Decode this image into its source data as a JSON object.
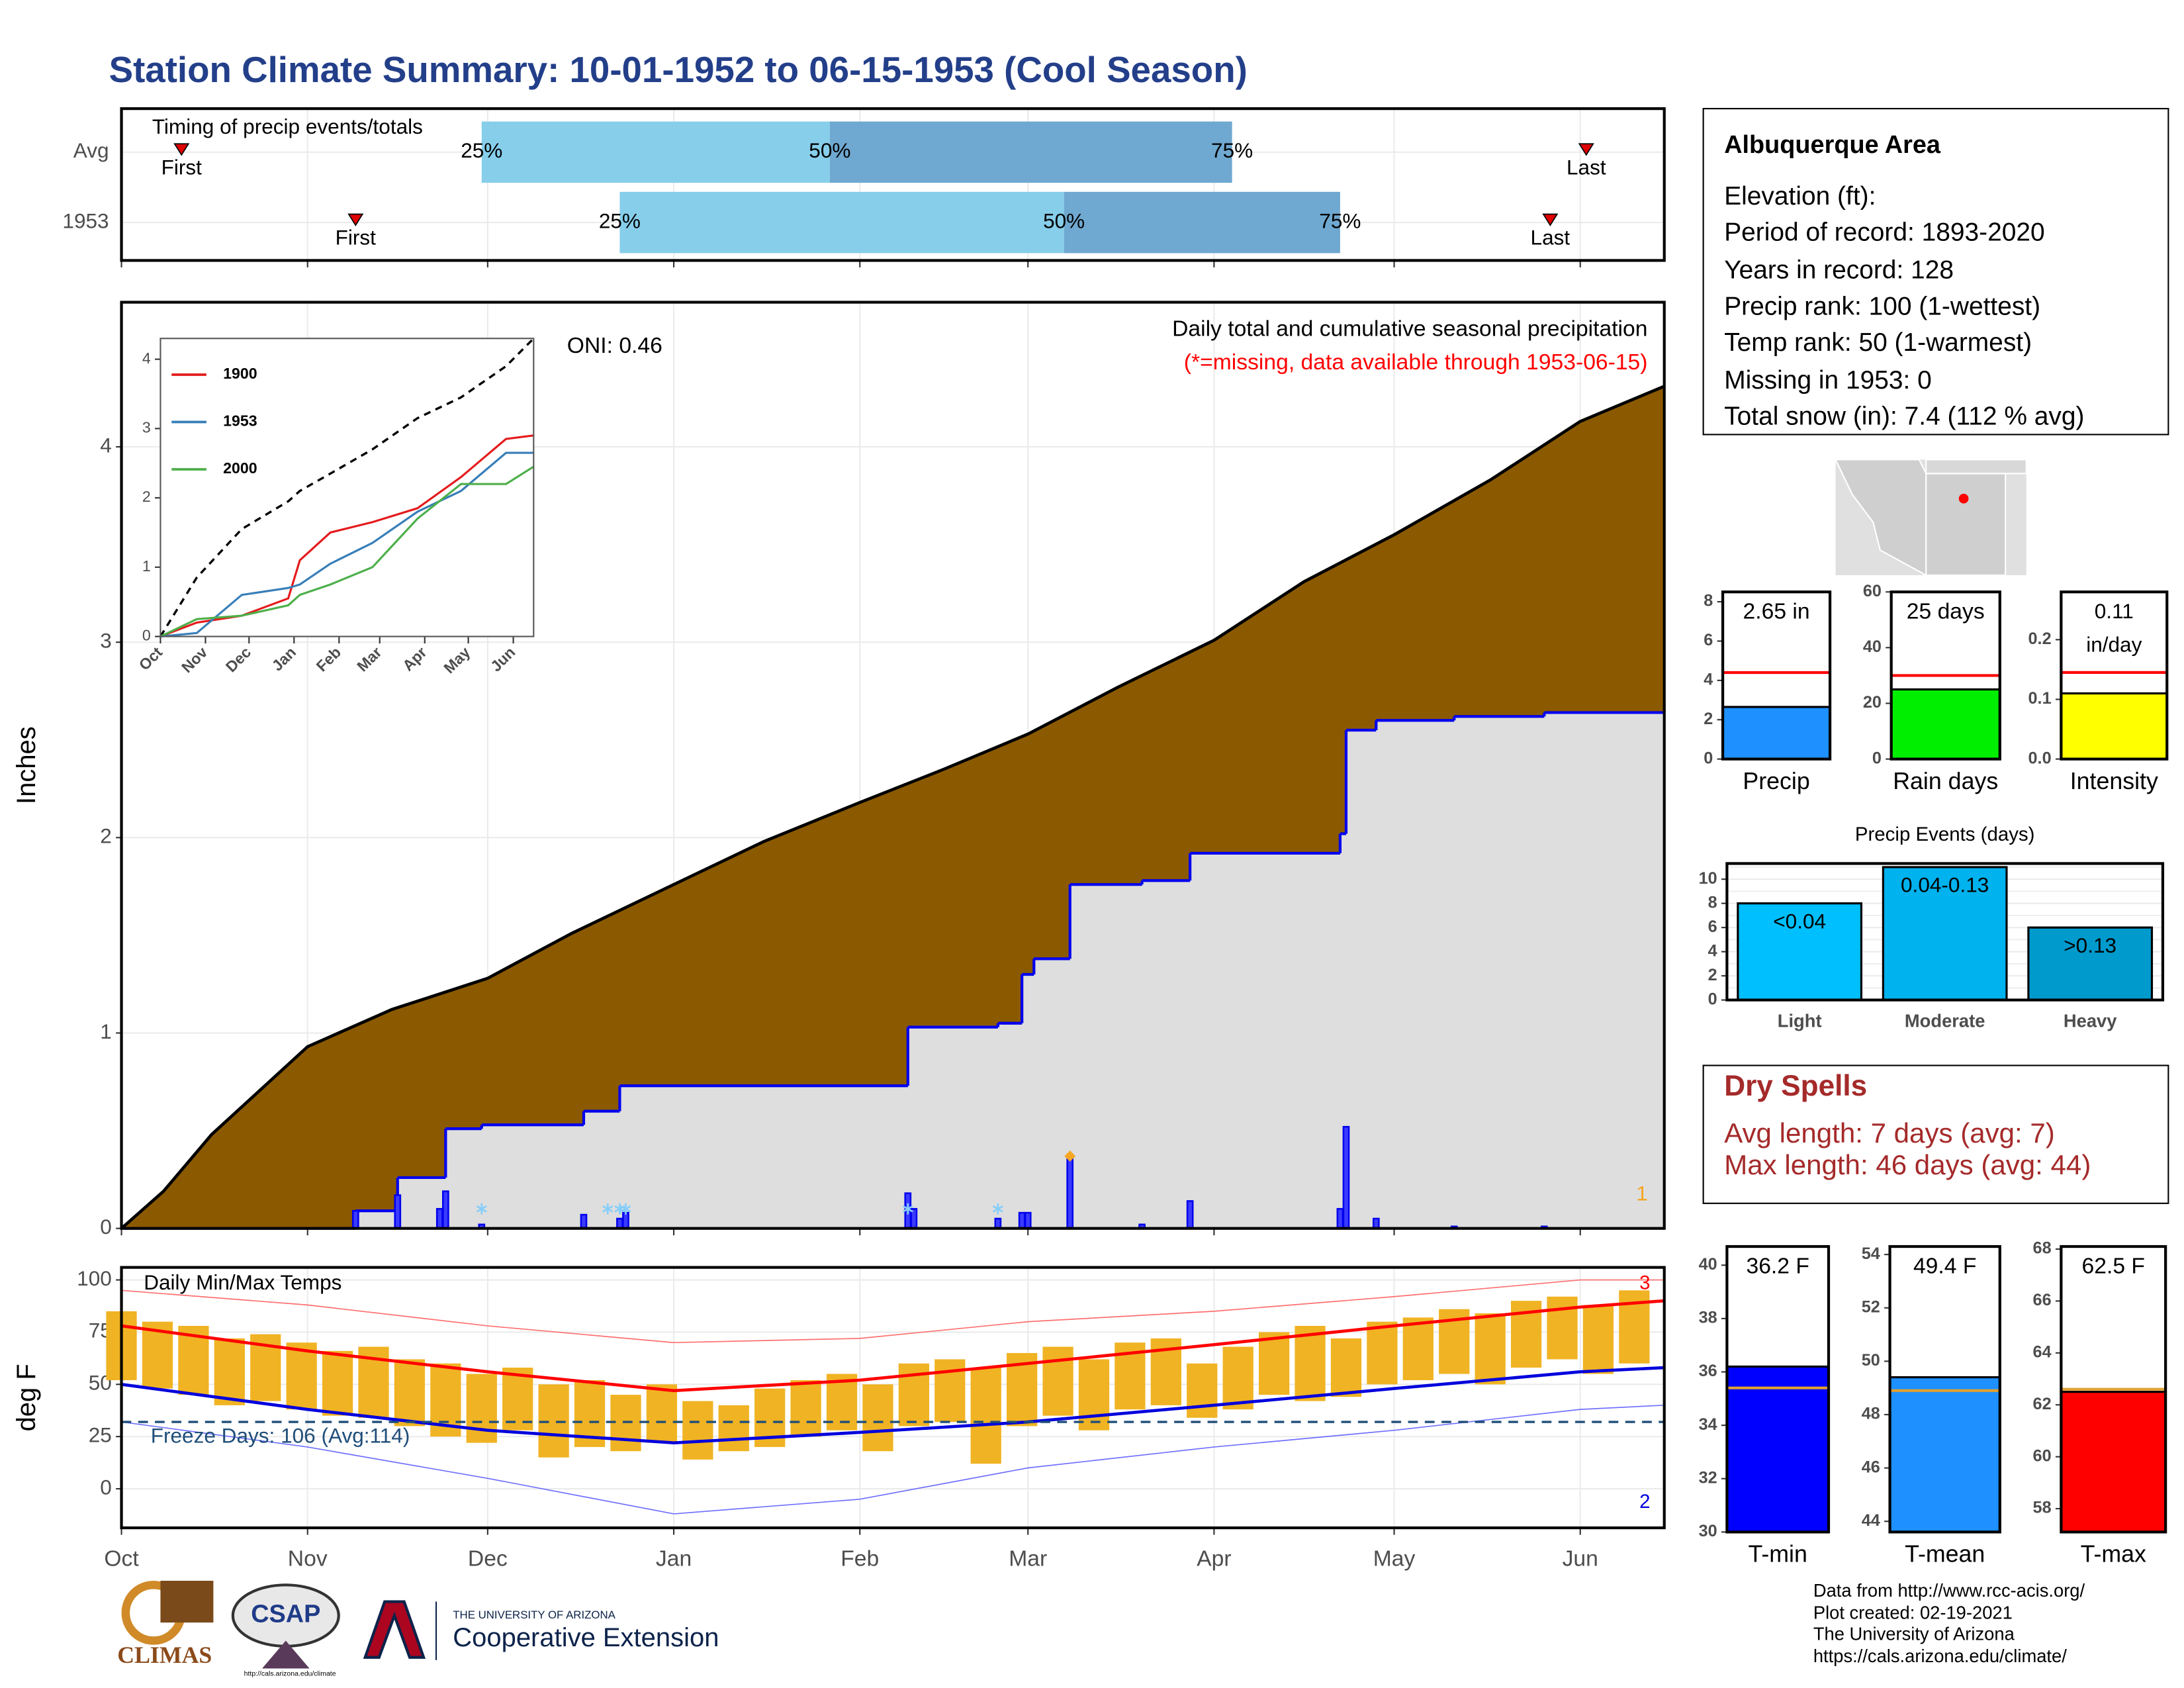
{
  "title": "Station Climate Summary: 10-01-1952 to 06-15-1953 (Cool Season)",
  "info": {
    "title": "Albuquerque Area",
    "lines": [
      "Elevation (ft):",
      "Period of record: 1893-2020",
      "Years in record: 128",
      "Precip rank: 100 (1-wettest)",
      "Temp rank: 50 (1-warmest)",
      "Missing in 1953: 0",
      "Total snow (in): 7.4 (112 % avg)"
    ]
  },
  "dry_spells": {
    "title": "Dry Spells",
    "lines": [
      "Avg length: 7 days (avg: 7)",
      "Max length: 46 days (avg: 44)"
    ]
  },
  "footer": {
    "credits": [
      "Data from http://www.rcc-acis.org/",
      "Plot created: 02-19-2021",
      "The University of Arizona",
      "https://cals.arizona.edu/climate/"
    ],
    "logos": {
      "climas": "CLIMAS",
      "csap": "CSAP",
      "csap_url": "http://cals.arizona.edu/climate",
      "university": "THE UNIVERSITY OF ARIZONA",
      "extension": "Cooperative Extension"
    }
  },
  "chart_data": [
    {
      "type": "timeline",
      "title": "Timing of precip events/totals",
      "xlim": [
        0,
        257
      ],
      "xticks": [
        0,
        31,
        61,
        92,
        123,
        151,
        182,
        212,
        243
      ],
      "first_label": "First",
      "last_label": "Last",
      "quartile_labels": [
        "25%",
        "50%",
        "75%"
      ],
      "colors": [
        "#87ceeb",
        "#6fa8d0"
      ],
      "marker_color": "#e00000",
      "rows": [
        {
          "name": "Avg",
          "first": 10,
          "q25": 60,
          "q50": 118,
          "q75": 185,
          "last": 244
        },
        {
          "name": "1953",
          "first": 39,
          "q25": 83,
          "q50": 157,
          "q75": 203,
          "last": 238
        }
      ]
    },
    {
      "type": "area",
      "ylabel": "Inches",
      "oni": "ONI: 0.46",
      "subtitle": "Daily total and cumulative seasonal precipitation",
      "note": "(*=missing, data available through 1953-06-15)",
      "corner_label": "1",
      "xlim": [
        0,
        257
      ],
      "xticks": [
        0,
        31,
        61,
        92,
        123,
        151,
        182,
        212,
        243
      ],
      "ylim": [
        0,
        4.74
      ],
      "yticks": [
        0,
        1,
        2,
        3,
        4
      ],
      "grid": true,
      "average": {
        "color": "#8b5a00",
        "x": [
          0,
          7,
          15,
          31,
          45,
          61,
          75,
          92,
          107,
          123,
          137,
          151,
          166,
          182,
          197,
          212,
          228,
          243,
          257
        ],
        "values": [
          0,
          0.19,
          0.48,
          0.93,
          1.12,
          1.28,
          1.51,
          1.76,
          1.98,
          2.18,
          2.35,
          2.53,
          2.77,
          3.01,
          3.31,
          3.55,
          3.83,
          4.13,
          4.31
        ]
      },
      "season": {
        "color": "#0000ee",
        "fill": "#dedede",
        "x": [
          0,
          39,
          46,
          54,
          60,
          77,
          83,
          131,
          146,
          150,
          152,
          158,
          170,
          178,
          203,
          204,
          209,
          222,
          237,
          257
        ],
        "values": [
          0,
          0.09,
          0.26,
          0.51,
          0.53,
          0.6,
          0.73,
          1.03,
          1.05,
          1.3,
          1.38,
          1.76,
          1.78,
          1.92,
          2.02,
          2.55,
          2.6,
          2.62,
          2.64,
          2.65
        ]
      },
      "daily": {
        "color": "#0000ee",
        "x": [
          39,
          46,
          53,
          54,
          60,
          77,
          83,
          84,
          131,
          132,
          146,
          150,
          151,
          158,
          170,
          178,
          203,
          204,
          209,
          222,
          237
        ],
        "values": [
          0.09,
          0.17,
          0.1,
          0.19,
          0.02,
          0.07,
          0.05,
          0.08,
          0.18,
          0.1,
          0.05,
          0.08,
          0.08,
          0.36,
          0.02,
          0.14,
          0.1,
          0.52,
          0.05,
          0.01,
          0.01
        ]
      },
      "snow_x": [
        60,
        81,
        83,
        84,
        131,
        146
      ],
      "snow_color": "#87cefa",
      "peak": {
        "x": 158,
        "value": 0.37,
        "color": "#f5a623"
      }
    },
    {
      "type": "line",
      "xlim": [
        0,
        257
      ],
      "ylim": [
        0,
        4.3
      ],
      "yticks": [
        0,
        1,
        2,
        3,
        4
      ],
      "xticks": [
        {
          "value": 0,
          "label": "Oct"
        },
        {
          "value": 31,
          "label": "Nov"
        },
        {
          "value": 61,
          "label": "Dec"
        },
        {
          "value": 92,
          "label": "Jan"
        },
        {
          "value": 123,
          "label": "Feb"
        },
        {
          "value": 151,
          "label": "Mar"
        },
        {
          "value": 182,
          "label": "Apr"
        },
        {
          "value": 212,
          "label": "May"
        },
        {
          "value": 243,
          "label": "Jun"
        }
      ],
      "x": [
        0,
        25,
        56,
        88,
        96,
        117,
        146,
        177,
        207,
        238,
        257
      ],
      "reference": {
        "color": "#000000",
        "values": [
          0,
          0.85,
          1.55,
          1.95,
          2.1,
          2.35,
          2.7,
          3.15,
          3.45,
          3.9,
          4.3
        ]
      },
      "series": [
        {
          "name": "1900",
          "color": "#e41a1c",
          "values": [
            0,
            0.2,
            0.3,
            0.55,
            1.1,
            1.5,
            1.65,
            1.85,
            2.3,
            2.85,
            2.9
          ]
        },
        {
          "name": "1953",
          "color": "#377eb8",
          "values": [
            0,
            0.05,
            0.6,
            0.7,
            0.75,
            1.05,
            1.35,
            1.8,
            2.1,
            2.65,
            2.65
          ]
        },
        {
          "name": "2000",
          "color": "#4daf4a",
          "values": [
            0,
            0.25,
            0.3,
            0.45,
            0.6,
            0.75,
            1.0,
            1.7,
            2.2,
            2.2,
            2.45
          ]
        }
      ]
    },
    {
      "type": "bar",
      "categories": [
        "Precip"
      ],
      "values": [
        2.65
      ],
      "value_labels": [
        "2.65 in"
      ],
      "color": "#1e90ff",
      "avg": 4.4,
      "avg_color": "#ff0000",
      "ylim": [
        0,
        8.5
      ],
      "yticks": [
        0,
        2,
        4,
        6,
        8
      ]
    },
    {
      "type": "bar",
      "categories": [
        "Rain days"
      ],
      "values": [
        25
      ],
      "value_labels": [
        "25 days"
      ],
      "color": "#00ee00",
      "avg": 30,
      "avg_color": "#ff0000",
      "ylim": [
        0,
        60
      ],
      "yticks": [
        0,
        20,
        40,
        60
      ]
    },
    {
      "type": "bar",
      "categories": [
        "Intensity"
      ],
      "values": [
        0.11
      ],
      "value_labels": [
        [
          "0.11",
          "in/day"
        ]
      ],
      "color": "#ffff00",
      "avg": 0.145,
      "avg_color": "#ff0000",
      "ylim": [
        0,
        0.28
      ],
      "yticks": [
        {
          "value": 0,
          "label": "0.0"
        },
        {
          "value": 0.1,
          "label": "0.1"
        },
        {
          "value": 0.2,
          "label": "0.2"
        }
      ]
    },
    {
      "type": "bar",
      "title": "Precip Events (days)",
      "categories": [
        "Light",
        "Moderate",
        "Heavy"
      ],
      "values": [
        8,
        11,
        6
      ],
      "value_labels": [
        "<0.04",
        "0.04-0.13",
        ">0.13"
      ],
      "colors": [
        "#00bfff",
        "#00b2ee",
        "#009acd"
      ],
      "ylim": [
        0,
        11.3
      ],
      "yticks": [
        0,
        2,
        4,
        6,
        8,
        10
      ],
      "grid": true
    },
    {
      "type": "range",
      "ylabel": "deg F",
      "title": "Daily Min/Max Temps",
      "freeze_label": "Freeze Days: 106 (Avg:114)",
      "freeze_line": 32,
      "high_label": "3",
      "low_label": "2",
      "color": "#f0b323",
      "xlim": [
        0,
        257
      ],
      "ylim": [
        -18.7,
        106
      ],
      "yticks": [
        0,
        25,
        50,
        75,
        100
      ],
      "grid": true,
      "xticks": [
        {
          "value": 0,
          "label": "Oct"
        },
        {
          "value": 31,
          "label": "Nov"
        },
        {
          "value": 61,
          "label": "Dec"
        },
        {
          "value": 92,
          "label": "Jan"
        },
        {
          "value": 123,
          "label": "Feb"
        },
        {
          "value": 151,
          "label": "Mar"
        },
        {
          "value": 182,
          "label": "Apr"
        },
        {
          "value": 212,
          "label": "May"
        },
        {
          "value": 243,
          "label": "Jun"
        }
      ],
      "x": [
        0,
        6,
        12,
        18,
        24,
        30,
        36,
        42,
        48,
        54,
        60,
        66,
        72,
        78,
        84,
        90,
        96,
        102,
        108,
        114,
        120,
        126,
        132,
        138,
        144,
        150,
        156,
        162,
        168,
        174,
        180,
        186,
        192,
        198,
        204,
        210,
        216,
        222,
        228,
        234,
        240,
        246,
        252
      ],
      "highs": [
        85,
        80,
        78,
        72,
        74,
        70,
        66,
        68,
        62,
        60,
        55,
        58,
        50,
        52,
        45,
        50,
        42,
        40,
        48,
        52,
        55,
        50,
        60,
        62,
        58,
        65,
        68,
        62,
        70,
        72,
        60,
        68,
        75,
        78,
        72,
        80,
        82,
        86,
        84,
        90,
        92,
        88,
        95
      ],
      "lows": [
        52,
        48,
        45,
        40,
        42,
        38,
        35,
        34,
        30,
        25,
        22,
        28,
        15,
        20,
        18,
        22,
        14,
        18,
        20,
        25,
        28,
        18,
        30,
        32,
        12,
        30,
        35,
        28,
        38,
        40,
        34,
        38,
        45,
        42,
        44,
        50,
        52,
        55,
        50,
        58,
        62,
        55,
        60
      ],
      "normals": {
        "x": [
          0,
          31,
          61,
          92,
          123,
          151,
          182,
          212,
          243,
          257
        ],
        "max": [
          78,
          66,
          56,
          47,
          52,
          60,
          69,
          78,
          87,
          90
        ],
        "min": [
          50,
          38,
          28,
          22,
          27,
          32,
          40,
          48,
          56,
          58
        ],
        "record_max": [
          95,
          88,
          78,
          70,
          72,
          80,
          85,
          92,
          100,
          100
        ],
        "record_min": [
          32,
          20,
          5,
          -12,
          -5,
          10,
          20,
          28,
          38,
          40
        ]
      }
    },
    {
      "type": "bar",
      "categories": [
        "T-min"
      ],
      "values": [
        36.2
      ],
      "value_labels": [
        "36.2 F"
      ],
      "color": "#0000ff",
      "avg": 35.4,
      "avg_color": "#e0a030",
      "ylim": [
        30,
        40.7
      ],
      "yticks": [
        30,
        32,
        34,
        36,
        38,
        40
      ]
    },
    {
      "type": "bar",
      "categories": [
        "T-mean"
      ],
      "values": [
        49.4
      ],
      "value_labels": [
        "49.4 F"
      ],
      "color": "#1e90ff",
      "avg": 48.9,
      "avg_color": "#e0a030",
      "ylim": [
        43.6,
        54.3
      ],
      "yticks": [
        44,
        46,
        48,
        50,
        52,
        54
      ]
    },
    {
      "type": "bar",
      "categories": [
        "T-max"
      ],
      "values": [
        62.5
      ],
      "value_labels": [
        "62.5 F"
      ],
      "color": "#ff0000",
      "avg": 62.6,
      "avg_color": "#e0a030",
      "ylim": [
        57.1,
        68.1
      ],
      "yticks": [
        58,
        60,
        62,
        64,
        66,
        68
      ]
    }
  ]
}
